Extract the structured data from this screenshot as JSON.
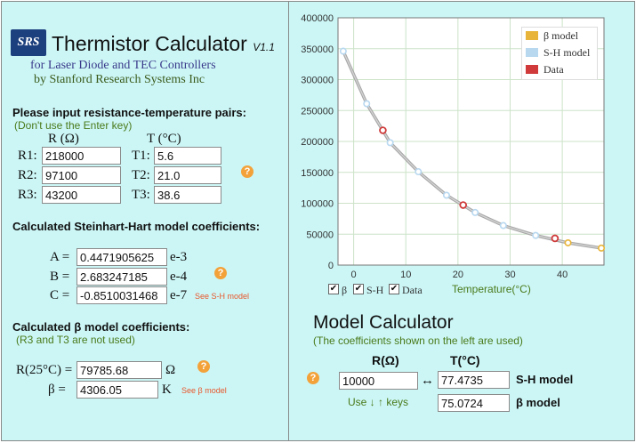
{
  "app": {
    "logo": "SRS",
    "title": "Thermistor Calculator",
    "version": "V1.1",
    "subtitle1": "for Laser Diode and TEC Controllers",
    "subtitle2": "by Stanford Research Systems Inc"
  },
  "input_section": {
    "heading": "Please input resistance-temperature pairs:",
    "note": "(Don't use the Enter key)",
    "col_r": "R (Ω)",
    "col_t": "T (°C)",
    "rows": [
      {
        "r_label": "R1:",
        "r_value": "218000",
        "t_label": "T1:",
        "t_value": "5.6"
      },
      {
        "r_label": "R2:",
        "r_value": "97100",
        "t_label": "T2:",
        "t_value": "21.0"
      },
      {
        "r_label": "R3:",
        "r_value": "43200",
        "t_label": "T3:",
        "t_value": "38.6"
      }
    ]
  },
  "sh_section": {
    "heading": "Calculated Steinhart-Hart model coefficients:",
    "coeffs": [
      {
        "label": "A =",
        "value": "0.4471905625",
        "exp": "e-3"
      },
      {
        "label": "B =",
        "value": "2.683247185",
        "exp": "e-4"
      },
      {
        "label": "C =",
        "value": "-0.8510031468",
        "exp": "e-7"
      }
    ],
    "link": "See S-H model"
  },
  "beta_section": {
    "heading": "Calculated β model coefficients:",
    "note": "(R3 and T3 are not used)",
    "r25_label": "R(25°C) =",
    "r25_value": "79785.68",
    "r25_unit": "Ω",
    "beta_label": "β =",
    "beta_value": "4306.05",
    "beta_unit": "K",
    "link": "See β model"
  },
  "help_icon": "?",
  "model_calc": {
    "title": "Model Calculator",
    "note": "(The coefficients shown on the left are used)",
    "col_r": "R(Ω)",
    "col_t": "T(°C)",
    "r_value": "10000",
    "arrow": "↔",
    "sh_value": "77.4735",
    "sh_label": "S-H model",
    "beta_value": "75.0724",
    "beta_label": "β model",
    "keys_hint": "Use ↓ ↑ keys"
  },
  "chart_data": {
    "type": "line",
    "xlabel": "Temperature(°C)",
    "ylabel": "",
    "xlim": [
      -3,
      48
    ],
    "ylim": [
      0,
      400000
    ],
    "xticks": [
      0,
      10,
      20,
      30,
      40
    ],
    "yticks": [
      0,
      50000,
      100000,
      150000,
      200000,
      250000,
      300000,
      350000,
      400000
    ],
    "grid": true,
    "legend_position": "top-right",
    "legend": [
      {
        "name": "β model",
        "color": "#e8b53a"
      },
      {
        "name": "S-H model",
        "color": "#b8d8f0"
      },
      {
        "name": "Data",
        "color": "#d03a3a"
      }
    ],
    "series": [
      {
        "name": "S-H model",
        "x": [
          -2,
          2.5,
          7,
          12.4,
          17.8,
          23.3,
          28.7,
          34.9,
          41.1,
          47.5
        ],
        "y": [
          346000,
          261000,
          198000,
          151000,
          113000,
          85000,
          64000,
          48000,
          36000,
          27500
        ]
      },
      {
        "name": "Data",
        "x": [
          5.6,
          21.0,
          38.6
        ],
        "y": [
          218000,
          97100,
          43200
        ]
      }
    ],
    "controls": [
      {
        "label": "β",
        "checked": true
      },
      {
        "label": "S-H",
        "checked": true
      },
      {
        "label": "Data",
        "checked": true
      }
    ],
    "check_glyph": "✔"
  }
}
